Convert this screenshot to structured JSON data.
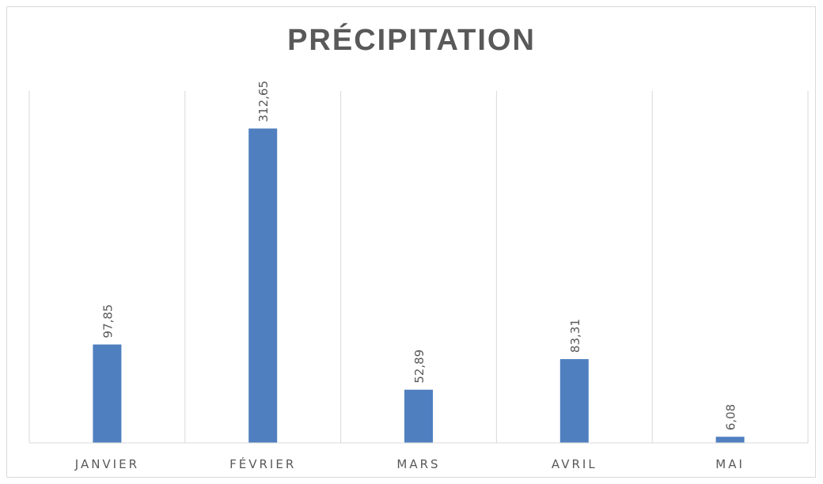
{
  "chart_data": {
    "type": "bar",
    "title": "PRÉCIPITATION",
    "categories": [
      "JANVIER",
      "FÉVRIER",
      "MARS",
      "AVRIL",
      "MAI"
    ],
    "values": [
      97.85,
      312.65,
      52.89,
      83.31,
      6.08
    ],
    "data_labels": [
      "97,85",
      "312,65",
      "52,89",
      "83,31",
      "6,08"
    ],
    "ylim": [
      0,
      350
    ],
    "bar_color": "#4f7fbf",
    "gridlines": "vertical",
    "legend": "none"
  }
}
